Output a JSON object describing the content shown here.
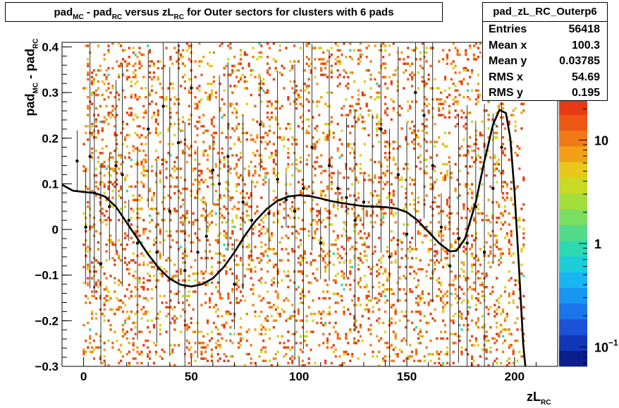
{
  "histogram_title": {
    "pre": "pad",
    "sub1": "MC",
    "mid": " - pad",
    "sub2": "RC",
    "post": " versus zL",
    "sub3": "RC",
    "tail": " for Outer sectors for clusters with 6 pads"
  },
  "stats": {
    "name": "pad_zL_RC_Outerp6",
    "rows": [
      {
        "label": "Entries",
        "value": "56418"
      },
      {
        "label": "Mean x",
        "value": "100.3"
      },
      {
        "label": "Mean y",
        "value": "0.03785"
      },
      {
        "label": "RMS x",
        "value": "54.69"
      },
      {
        "label": "RMS y",
        "value": "0.195"
      }
    ]
  },
  "axis_titles": {
    "y": {
      "pre": "pad",
      "sub1": "MC",
      "mid": " - pad",
      "sub2": "RC"
    },
    "x": {
      "pre": "zL",
      "sub": "RC"
    }
  },
  "colorbar": {
    "tick_labels": [
      "10",
      "1",
      "10"
    ],
    "exponent": "−1",
    "colors": [
      "#0a1e8c",
      "#1236b8",
      "#1a52d8",
      "#1a74ea",
      "#1896f0",
      "#18b6f0",
      "#1ccdd8",
      "#2ed8b2",
      "#52dc8a",
      "#7ade60",
      "#a4de3c",
      "#cad826",
      "#e8c81c",
      "#f2a018",
      "#f07a16",
      "#ec5814",
      "#e53a12"
    ]
  },
  "chart_data": {
    "type": "heatmap",
    "subtype": "2D histogram with profile points and polynomial fit",
    "xlim": [
      -10,
      220
    ],
    "ylim": [
      -0.3,
      0.41
    ],
    "x_ticks": [
      0,
      50,
      100,
      150,
      200
    ],
    "y_ticks": [
      -0.3,
      -0.2,
      -0.1,
      0,
      0.1,
      0.2,
      0.3,
      0.4
    ],
    "x_tick_labels": [
      "0",
      "50",
      "100",
      "150",
      "200"
    ],
    "y_tick_labels": [
      "−0.3",
      "−0.2",
      "−0.1",
      "0",
      "0.1",
      "0.2",
      "0.3",
      "0.4"
    ],
    "z_scale": "log",
    "z_range": [
      0.065,
      25
    ],
    "fit_curve": {
      "x": [
        -10,
        -5,
        0,
        5,
        10,
        15,
        20,
        25,
        30,
        35,
        40,
        45,
        50,
        55,
        60,
        65,
        70,
        75,
        80,
        85,
        90,
        95,
        100,
        105,
        110,
        115,
        120,
        125,
        130,
        135,
        140,
        145,
        150,
        155,
        160,
        165,
        170,
        173,
        177,
        182,
        186,
        190,
        193,
        196,
        198,
        200,
        202,
        204,
        205
      ],
      "y": [
        0.098,
        0.085,
        0.082,
        0.08,
        0.072,
        0.05,
        0.015,
        -0.02,
        -0.055,
        -0.085,
        -0.108,
        -0.121,
        -0.125,
        -0.12,
        -0.107,
        -0.083,
        -0.05,
        -0.012,
        0.02,
        0.045,
        0.063,
        0.072,
        0.075,
        0.073,
        0.068,
        0.062,
        0.058,
        0.054,
        0.051,
        0.05,
        0.049,
        0.046,
        0.038,
        0.02,
        -0.005,
        -0.03,
        -0.048,
        -0.047,
        -0.02,
        0.06,
        0.15,
        0.23,
        0.262,
        0.255,
        0.2,
        0.08,
        -0.08,
        -0.25,
        -0.31
      ]
    },
    "profile_points": {
      "x": [
        -3,
        1,
        3,
        5,
        8,
        12,
        15,
        18,
        21,
        25,
        30,
        34,
        37,
        40,
        44,
        47,
        50,
        53,
        57,
        60,
        63,
        67,
        70,
        74,
        78,
        82,
        86,
        90,
        94,
        98,
        102,
        106,
        110,
        114,
        118,
        122,
        126,
        130,
        134,
        138,
        142,
        146,
        150,
        154,
        158,
        162,
        166,
        170,
        174,
        178,
        182,
        186,
        190,
        194
      ],
      "y": [
        0.15,
        0.005,
        0.16,
        0.08,
        -0.075,
        0.05,
        0.14,
        0.12,
        0.02,
        -0.03,
        0.22,
        -0.05,
        0.27,
        0.04,
        0.19,
        -0.09,
        0.31,
        -0.05,
        -0.015,
        0.13,
        0.1,
        0.16,
        -0.12,
        0.06,
        0.02,
        0.23,
        0.035,
        0.11,
        0.065,
        0.04,
        0.09,
        0.18,
        -0.03,
        0.14,
        0.09,
        0.07,
        0.02,
        0.06,
        0.05,
        0.22,
        -0.06,
        0.12,
        -0.01,
        0.3,
        0.25,
        0.14,
        0.005,
        -0.08,
        -0.02,
        -0.03,
        0.05,
        -0.05,
        0.09,
        0.18
      ]
    }
  }
}
